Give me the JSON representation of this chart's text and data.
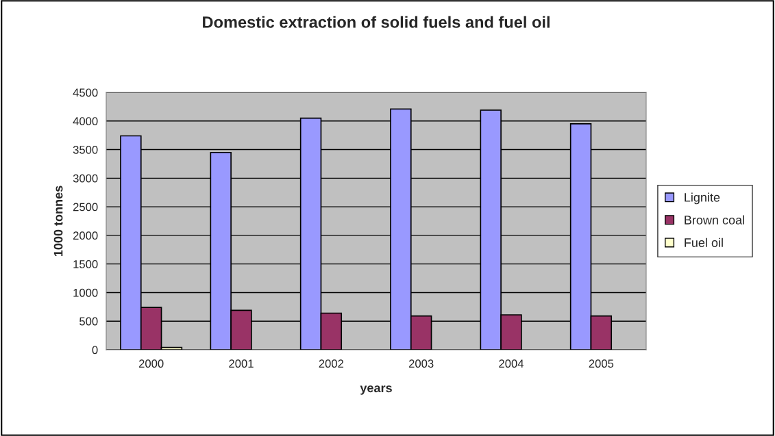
{
  "chart_data": {
    "type": "bar",
    "title": "Domestic extraction of solid fuels and fuel oil",
    "xlabel": "years",
    "ylabel": "1000 tonnes",
    "categories": [
      "2000",
      "2001",
      "2002",
      "2003",
      "2004",
      "2005"
    ],
    "series": [
      {
        "name": "Lignite",
        "color": "#9999ff",
        "values": [
          3740,
          3450,
          4050,
          4210,
          4190,
          3950
        ]
      },
      {
        "name": "Brown coal",
        "color": "#993366",
        "values": [
          740,
          690,
          640,
          590,
          610,
          590
        ]
      },
      {
        "name": "Fuel oil",
        "color": "#ffffcc",
        "values": [
          40,
          null,
          null,
          null,
          null,
          null
        ]
      }
    ],
    "ylim": [
      0,
      4500
    ],
    "yticks": [
      0,
      500,
      1000,
      1500,
      2000,
      2500,
      3000,
      3500,
      4000,
      4500
    ],
    "grid": "y",
    "legend": "right"
  }
}
